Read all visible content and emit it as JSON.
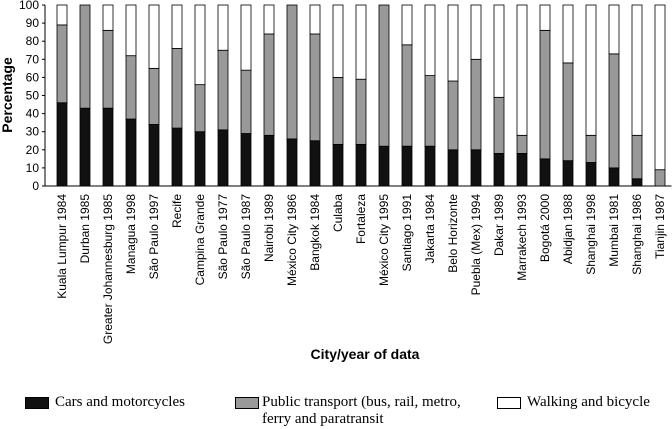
{
  "chart_data": {
    "type": "stacked-bar",
    "y_label": "Percentage",
    "x_label": "City/year of data",
    "categories": [
      "Kuala Lumpur 1984",
      "Durban 1985",
      "Greater Johannesburg 1985",
      "Managua 1998",
      "São Paulo 1997",
      "Recife",
      "Campina Grande",
      "São Paulo 1977",
      "São Paulo 1987",
      "Nairobi 1989",
      "México City 1986",
      "Bangkok 1984",
      "Culaba",
      "Fortaleza",
      "México City 1995",
      "Santiago 1991",
      "Jakarta 1984",
      "Belo Horizonte",
      "Puebla (Mex) 1994",
      "Dakar 1989",
      "Marrakech 1993",
      "Bogotá 2000",
      "Abidjan 1988",
      "Shanghai 1998",
      "Mumbai 1981",
      "Shanghai 1986",
      "Tianjin 1987"
    ],
    "series": [
      {
        "name": "Cars and motorcycles",
        "color": "#111111",
        "values": [
          46,
          43,
          43,
          37,
          34,
          32,
          30,
          31,
          29,
          28,
          26,
          25,
          23,
          23,
          22,
          22,
          22,
          20,
          20,
          18,
          18,
          15,
          14,
          13,
          10,
          4,
          0
        ]
      },
      {
        "name": "Public transport (bus, rail, metro, ferry and paratransit",
        "color": "#999999",
        "values": [
          43,
          57,
          43,
          35,
          31,
          44,
          26,
          44,
          35,
          56,
          74,
          59,
          37,
          36,
          78,
          56,
          39,
          38,
          50,
          31,
          10,
          71,
          54,
          15,
          63,
          24,
          9
        ]
      },
      {
        "name": "Walking and bicycle",
        "color": "#ffffff",
        "values": [
          11,
          0,
          14,
          28,
          35,
          24,
          44,
          25,
          36,
          16,
          0,
          16,
          40,
          41,
          0,
          22,
          39,
          42,
          30,
          51,
          72,
          14,
          32,
          72,
          27,
          72,
          91
        ]
      }
    ],
    "ylim": [
      0,
      100
    ],
    "yticks": [
      0,
      10,
      20,
      30,
      40,
      50,
      60,
      70,
      80,
      90,
      100
    ],
    "grid": false,
    "legend": "bottom"
  }
}
